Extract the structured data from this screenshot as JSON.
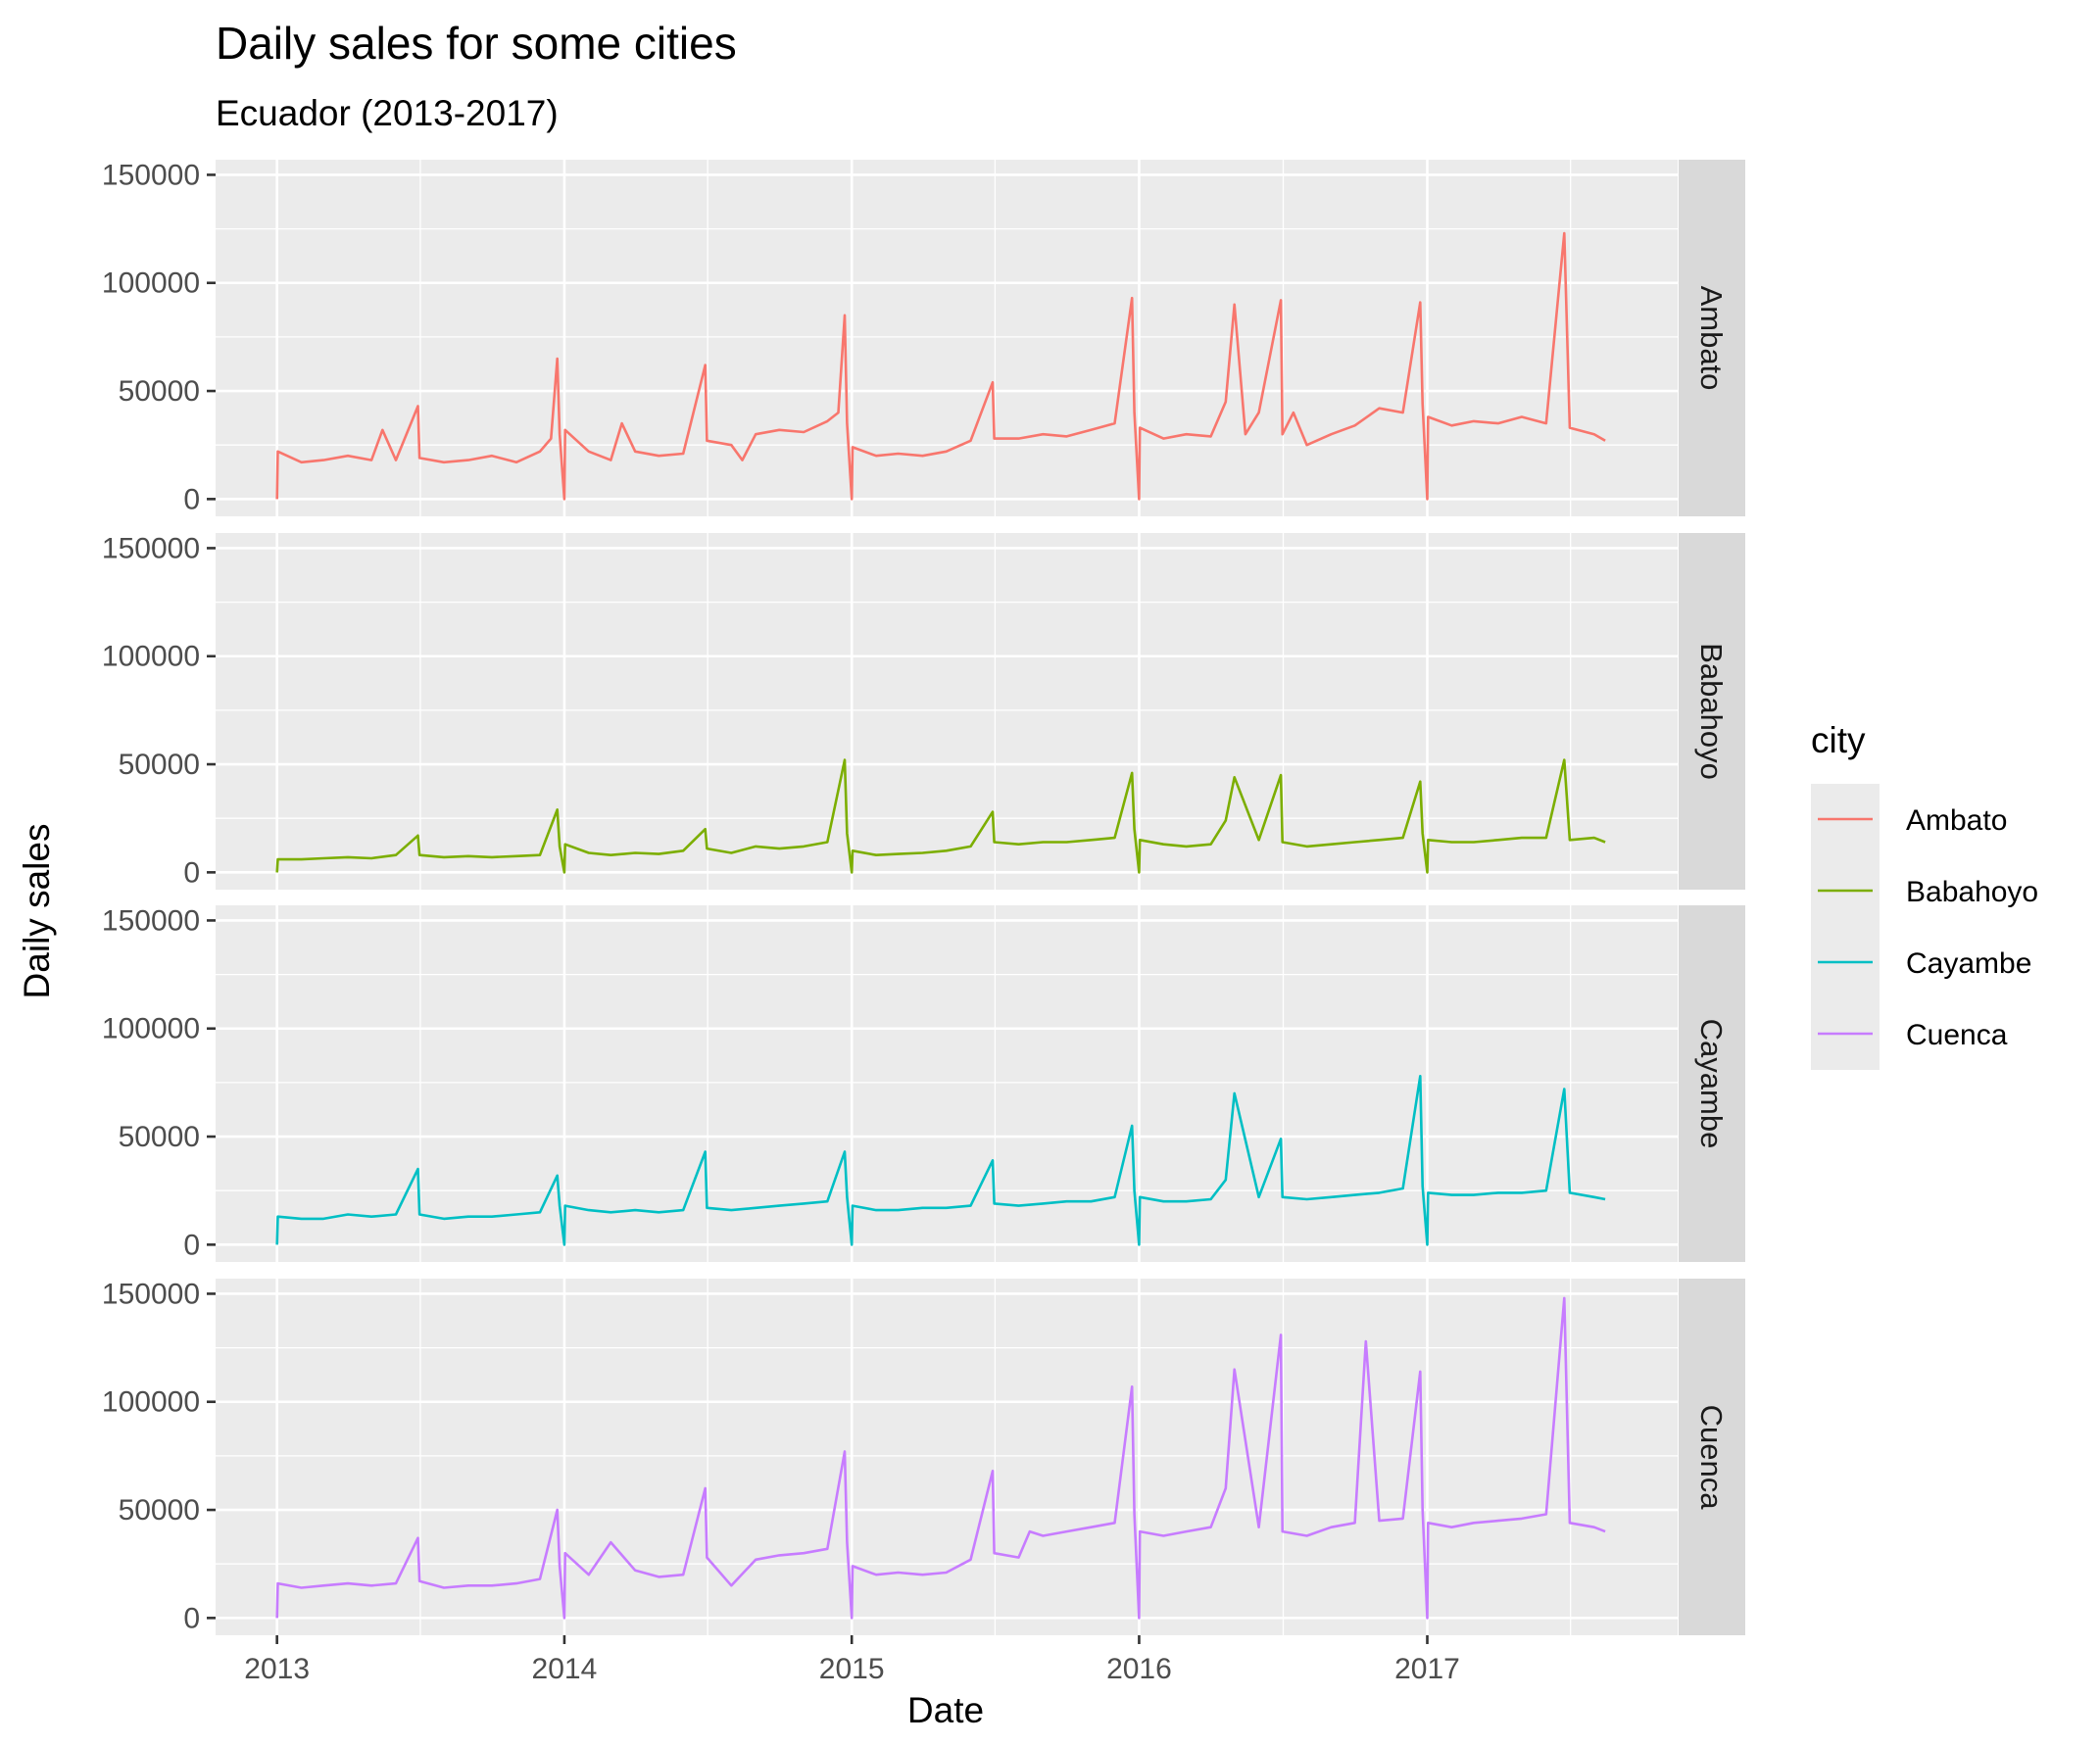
{
  "chart_data": {
    "type": "line",
    "title": "Daily sales for some cities",
    "subtitle": "Ecuador (2013-2017)",
    "xlabel": "Date",
    "ylabel": "Daily sales",
    "xlim": [
      "2012-10-15",
      "2017-11-15"
    ],
    "ylim": [
      -8000,
      157000
    ],
    "x_tick_labels": [
      "2013",
      "2014",
      "2015",
      "2016",
      "2017"
    ],
    "y_tick_labels": [
      "0",
      "50000",
      "100000",
      "150000"
    ],
    "y_ticks": [
      0,
      50000,
      100000,
      150000
    ],
    "grid": true,
    "facet": "rows",
    "legend": {
      "title": "city",
      "placement": "right",
      "entries": [
        "Ambato",
        "Babahoyo",
        "Cayambe",
        "Cuenca"
      ]
    },
    "series": [
      {
        "name": "Ambato",
        "color": "#F8766D",
        "x": [
          "2013-01-01",
          "2013-01-02",
          "2013-02-01",
          "2013-03-01",
          "2013-04-01",
          "2013-05-01",
          "2013-05-15",
          "2013-06-01",
          "2013-06-29",
          "2013-07-01",
          "2013-08-01",
          "2013-09-01",
          "2013-10-01",
          "2013-11-01",
          "2013-12-01",
          "2013-12-15",
          "2013-12-23",
          "2013-12-26",
          "2014-01-01",
          "2014-01-02",
          "2014-02-01",
          "2014-03-01",
          "2014-03-15",
          "2014-04-01",
          "2014-05-01",
          "2014-06-01",
          "2014-06-29",
          "2014-07-01",
          "2014-08-01",
          "2014-08-15",
          "2014-09-01",
          "2014-10-01",
          "2014-11-01",
          "2014-12-01",
          "2014-12-15",
          "2014-12-23",
          "2014-12-26",
          "2015-01-01",
          "2015-01-02",
          "2015-02-01",
          "2015-03-01",
          "2015-04-01",
          "2015-05-01",
          "2015-06-01",
          "2015-06-29",
          "2015-07-01",
          "2015-08-01",
          "2015-09-01",
          "2015-10-01",
          "2015-11-01",
          "2015-12-01",
          "2015-12-23",
          "2015-12-26",
          "2016-01-01",
          "2016-01-02",
          "2016-02-01",
          "2016-03-01",
          "2016-04-01",
          "2016-04-20",
          "2016-05-01",
          "2016-05-15",
          "2016-06-01",
          "2016-06-29",
          "2016-07-01",
          "2016-07-15",
          "2016-08-01",
          "2016-09-01",
          "2016-10-01",
          "2016-11-01",
          "2016-12-01",
          "2016-12-23",
          "2016-12-26",
          "2017-01-01",
          "2017-01-02",
          "2017-02-01",
          "2017-03-01",
          "2017-04-01",
          "2017-05-01",
          "2017-06-01",
          "2017-06-24",
          "2017-07-01",
          "2017-08-01",
          "2017-08-15"
        ],
        "values": [
          0,
          22000,
          17000,
          18000,
          20000,
          18000,
          32000,
          18000,
          43000,
          19000,
          17000,
          18000,
          20000,
          17000,
          22000,
          28000,
          65000,
          30000,
          0,
          32000,
          22000,
          18000,
          35000,
          22000,
          20000,
          21000,
          62000,
          27000,
          25000,
          18000,
          30000,
          32000,
          31000,
          36000,
          40000,
          85000,
          35000,
          0,
          24000,
          20000,
          21000,
          20000,
          22000,
          27000,
          54000,
          28000,
          28000,
          30000,
          29000,
          32000,
          35000,
          93000,
          40000,
          0,
          33000,
          28000,
          30000,
          29000,
          45000,
          90000,
          30000,
          40000,
          92000,
          30000,
          40000,
          25000,
          30000,
          34000,
          42000,
          40000,
          91000,
          44000,
          0,
          38000,
          34000,
          36000,
          35000,
          38000,
          35000,
          123000,
          33000,
          30000,
          27000
        ]
      },
      {
        "name": "Babahoyo",
        "color": "#7CAE00",
        "x": [
          "2013-01-01",
          "2013-01-02",
          "2013-02-01",
          "2013-03-01",
          "2013-04-01",
          "2013-05-01",
          "2013-06-01",
          "2013-06-29",
          "2013-07-01",
          "2013-08-01",
          "2013-09-01",
          "2013-10-01",
          "2013-11-01",
          "2013-12-01",
          "2013-12-23",
          "2013-12-26",
          "2014-01-01",
          "2014-01-02",
          "2014-02-01",
          "2014-03-01",
          "2014-04-01",
          "2014-05-01",
          "2014-06-01",
          "2014-06-29",
          "2014-07-01",
          "2014-08-01",
          "2014-09-01",
          "2014-10-01",
          "2014-11-01",
          "2014-12-01",
          "2014-12-23",
          "2014-12-26",
          "2015-01-01",
          "2015-01-02",
          "2015-02-01",
          "2015-03-01",
          "2015-04-01",
          "2015-05-01",
          "2015-06-01",
          "2015-06-29",
          "2015-07-01",
          "2015-08-01",
          "2015-09-01",
          "2015-10-01",
          "2015-11-01",
          "2015-12-01",
          "2015-12-23",
          "2015-12-26",
          "2016-01-01",
          "2016-01-02",
          "2016-02-01",
          "2016-03-01",
          "2016-04-01",
          "2016-04-20",
          "2016-05-01",
          "2016-06-01",
          "2016-06-29",
          "2016-07-01",
          "2016-08-01",
          "2016-09-01",
          "2016-10-01",
          "2016-11-01",
          "2016-12-01",
          "2016-12-23",
          "2016-12-26",
          "2017-01-01",
          "2017-01-02",
          "2017-02-01",
          "2017-03-01",
          "2017-04-01",
          "2017-05-01",
          "2017-06-01",
          "2017-06-24",
          "2017-07-01",
          "2017-08-01",
          "2017-08-15"
        ],
        "values": [
          0,
          6000,
          6000,
          6500,
          7000,
          6500,
          8000,
          17000,
          8000,
          7000,
          7500,
          7000,
          7500,
          8000,
          29000,
          12000,
          0,
          13000,
          9000,
          8000,
          9000,
          8500,
          10000,
          20000,
          11000,
          9000,
          12000,
          11000,
          12000,
          14000,
          52000,
          18000,
          0,
          10000,
          8000,
          8500,
          9000,
          10000,
          12000,
          28000,
          14000,
          13000,
          14000,
          14000,
          15000,
          16000,
          46000,
          20000,
          0,
          15000,
          13000,
          12000,
          13000,
          24000,
          44000,
          15000,
          45000,
          14000,
          12000,
          13000,
          14000,
          15000,
          16000,
          42000,
          18000,
          0,
          15000,
          14000,
          14000,
          15000,
          16000,
          16000,
          52000,
          15000,
          16000,
          14000
        ]
      },
      {
        "name": "Cayambe",
        "color": "#00BFC4",
        "x": [
          "2013-01-01",
          "2013-01-02",
          "2013-02-01",
          "2013-03-01",
          "2013-04-01",
          "2013-05-01",
          "2013-06-01",
          "2013-06-29",
          "2013-07-01",
          "2013-08-01",
          "2013-09-01",
          "2013-10-01",
          "2013-11-01",
          "2013-12-01",
          "2013-12-23",
          "2013-12-26",
          "2014-01-01",
          "2014-01-02",
          "2014-02-01",
          "2014-03-01",
          "2014-04-01",
          "2014-05-01",
          "2014-06-01",
          "2014-06-29",
          "2014-07-01",
          "2014-08-01",
          "2014-09-01",
          "2014-10-01",
          "2014-11-01",
          "2014-12-01",
          "2014-12-23",
          "2014-12-26",
          "2015-01-01",
          "2015-01-02",
          "2015-02-01",
          "2015-03-01",
          "2015-04-01",
          "2015-05-01",
          "2015-06-01",
          "2015-06-29",
          "2015-07-01",
          "2015-08-01",
          "2015-09-01",
          "2015-10-01",
          "2015-11-01",
          "2015-12-01",
          "2015-12-23",
          "2015-12-26",
          "2016-01-01",
          "2016-01-02",
          "2016-02-01",
          "2016-03-01",
          "2016-04-01",
          "2016-04-20",
          "2016-05-01",
          "2016-06-01",
          "2016-06-29",
          "2016-07-01",
          "2016-08-01",
          "2016-09-01",
          "2016-10-01",
          "2016-11-01",
          "2016-12-01",
          "2016-12-23",
          "2016-12-26",
          "2017-01-01",
          "2017-01-02",
          "2017-02-01",
          "2017-03-01",
          "2017-04-01",
          "2017-05-01",
          "2017-06-01",
          "2017-06-24",
          "2017-07-01",
          "2017-08-01",
          "2017-08-15"
        ],
        "values": [
          0,
          13000,
          12000,
          12000,
          14000,
          13000,
          14000,
          35000,
          14000,
          12000,
          13000,
          13000,
          14000,
          15000,
          32000,
          18000,
          0,
          18000,
          16000,
          15000,
          16000,
          15000,
          16000,
          43000,
          17000,
          16000,
          17000,
          18000,
          19000,
          20000,
          43000,
          22000,
          0,
          18000,
          16000,
          16000,
          17000,
          17000,
          18000,
          39000,
          19000,
          18000,
          19000,
          20000,
          20000,
          22000,
          55000,
          25000,
          0,
          22000,
          20000,
          20000,
          21000,
          30000,
          70000,
          22000,
          49000,
          22000,
          21000,
          22000,
          23000,
          24000,
          26000,
          78000,
          27000,
          0,
          24000,
          23000,
          23000,
          24000,
          24000,
          25000,
          72000,
          24000,
          22000,
          21000
        ]
      },
      {
        "name": "Cuenca",
        "color": "#C77CFF",
        "x": [
          "2013-01-01",
          "2013-01-02",
          "2013-02-01",
          "2013-03-01",
          "2013-04-01",
          "2013-05-01",
          "2013-06-01",
          "2013-06-29",
          "2013-07-01",
          "2013-08-01",
          "2013-09-01",
          "2013-10-01",
          "2013-11-01",
          "2013-12-01",
          "2013-12-23",
          "2013-12-26",
          "2014-01-01",
          "2014-01-02",
          "2014-02-01",
          "2014-03-01",
          "2014-04-01",
          "2014-05-01",
          "2014-06-01",
          "2014-06-29",
          "2014-07-01",
          "2014-08-01",
          "2014-09-01",
          "2014-10-01",
          "2014-11-01",
          "2014-12-01",
          "2014-12-23",
          "2014-12-26",
          "2015-01-01",
          "2015-01-02",
          "2015-02-01",
          "2015-03-01",
          "2015-04-01",
          "2015-05-01",
          "2015-06-01",
          "2015-06-29",
          "2015-07-01",
          "2015-08-01",
          "2015-08-15",
          "2015-09-01",
          "2015-10-01",
          "2015-11-01",
          "2015-12-01",
          "2015-12-23",
          "2015-12-26",
          "2016-01-01",
          "2016-01-02",
          "2016-02-01",
          "2016-03-01",
          "2016-04-01",
          "2016-04-20",
          "2016-05-01",
          "2016-06-01",
          "2016-06-29",
          "2016-07-01",
          "2016-08-01",
          "2016-09-01",
          "2016-10-01",
          "2016-10-15",
          "2016-11-01",
          "2016-12-01",
          "2016-12-23",
          "2016-12-26",
          "2017-01-01",
          "2017-01-02",
          "2017-02-01",
          "2017-03-01",
          "2017-04-01",
          "2017-05-01",
          "2017-06-01",
          "2017-06-24",
          "2017-07-01",
          "2017-08-01",
          "2017-08-15"
        ],
        "values": [
          0,
          16000,
          14000,
          15000,
          16000,
          15000,
          16000,
          37000,
          17000,
          14000,
          15000,
          15000,
          16000,
          18000,
          50000,
          24000,
          0,
          30000,
          20000,
          35000,
          22000,
          19000,
          20000,
          60000,
          28000,
          15000,
          27000,
          29000,
          30000,
          32000,
          77000,
          35000,
          0,
          24000,
          20000,
          21000,
          20000,
          21000,
          27000,
          68000,
          30000,
          28000,
          40000,
          38000,
          40000,
          42000,
          44000,
          107000,
          48000,
          0,
          40000,
          38000,
          40000,
          42000,
          60000,
          115000,
          42000,
          131000,
          40000,
          38000,
          42000,
          44000,
          128000,
          45000,
          46000,
          114000,
          50000,
          0,
          44000,
          42000,
          44000,
          45000,
          46000,
          48000,
          148000,
          44000,
          42000,
          40000
        ]
      }
    ]
  }
}
